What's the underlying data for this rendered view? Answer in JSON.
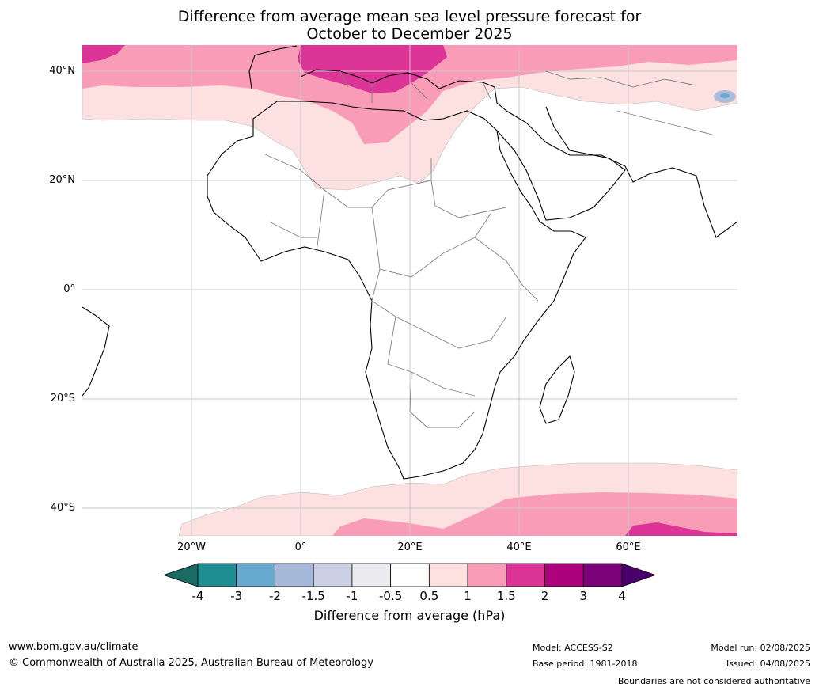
{
  "title_line1": "Difference from average mean sea level pressure forecast for",
  "title_line2": "October to December 2025",
  "lat_labels": [
    "40°N",
    "20°N",
    "0°",
    "20°S",
    "40°S"
  ],
  "lon_labels": [
    "20°W",
    "0°",
    "20°E",
    "40°E",
    "60°E"
  ],
  "colorbar": {
    "ticks": [
      "-4",
      "-3",
      "-2",
      "-1.5",
      "-1",
      "-0.5",
      "0.5",
      "1",
      "1.5",
      "2",
      "3",
      "4"
    ],
    "colors": [
      "#1a6b63",
      "#1f8e92",
      "#67a9cf",
      "#a6b8d9",
      "#ccd0e4",
      "#ececf0",
      "#ffffff",
      "#fde0e0",
      "#f89cb7",
      "#dd3497",
      "#ae017e",
      "#7a0177",
      "#49006a"
    ],
    "label": "Difference from average (hPa)"
  },
  "footer": {
    "url": "www.bom.gov.au/climate",
    "copyright": "© Commonwealth of Australia 2025, Australian Bureau of Meteorology",
    "model": "Model: ACCESS-S2",
    "base_period": "Base period: 1981-2018",
    "model_run": "Model run: 02/08/2025",
    "issued": "Issued: 04/08/2025",
    "disclaimer": "Boundaries are not considered authoritative"
  }
}
